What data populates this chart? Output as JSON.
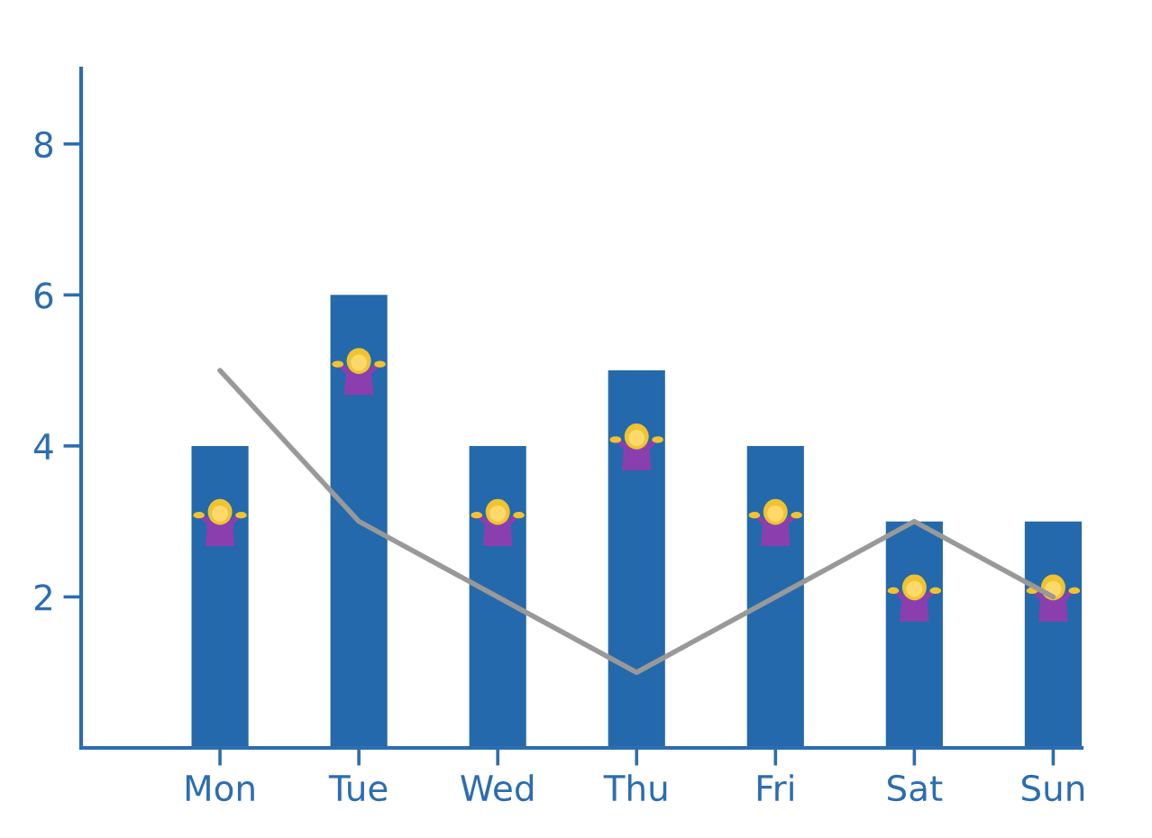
{
  "chart_data": {
    "type": "bar",
    "categories": [
      "Mon",
      "Tue",
      "Wed",
      "Thu",
      "Fri",
      "Sat",
      "Sun"
    ],
    "series": [
      {
        "color": "#2469ab",
        "values": [
          4,
          6,
          4,
          5,
          4,
          3,
          3
        ]
      },
      {
        "type": "line",
        "color": "#999999",
        "values": [
          5,
          3,
          2,
          1,
          2,
          3,
          2
        ]
      }
    ],
    "ylim": [
      0,
      9
    ],
    "yticks": [
      2,
      4,
      6,
      8
    ]
  }
}
